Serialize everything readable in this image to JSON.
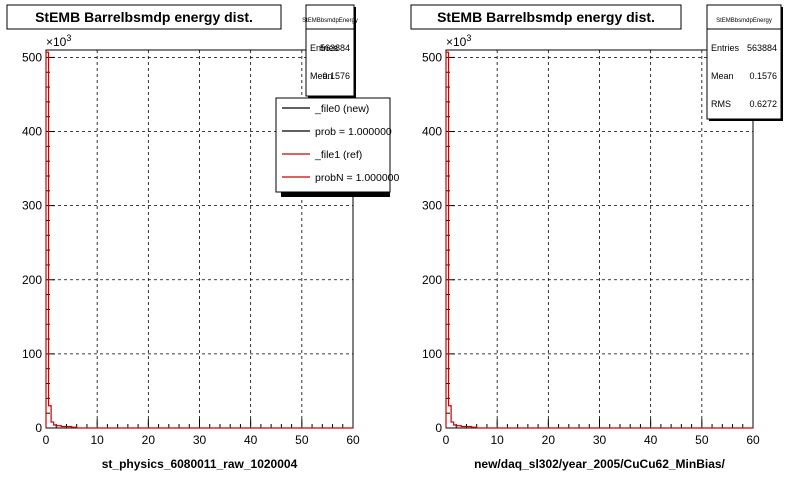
{
  "chart_data": [
    {
      "type": "histogram",
      "title": "StEMB Barrelbsmdp energy dist.",
      "xlabel": "st_physics_6080011_raw_1020004",
      "ylabel": "",
      "xlim": [
        0,
        60
      ],
      "ylim": [
        0,
        510
      ],
      "xticks": [
        0,
        10,
        20,
        30,
        40,
        50,
        60
      ],
      "yticks": [
        0,
        100,
        200,
        300,
        400,
        500
      ],
      "y_multiplier": "×10",
      "y_multiplier_exp": "3",
      "grid": true,
      "stats": {
        "title": "StEMBbsmdpEnergy",
        "rows": [
          {
            "label": "Entries",
            "value": "563884"
          },
          {
            "label": "Mean",
            "value": "0.1576"
          }
        ]
      },
      "legend": {
        "placement": "top-right",
        "entries": [
          {
            "label": "_file0 (new)",
            "color": "#000000"
          },
          {
            "label": "prob = 1.000000",
            "color": "#000000"
          },
          {
            "label": "_file1 (ref)",
            "color": "#cc0000"
          },
          {
            "label": "probN = 1.000000",
            "color": "#cc0000"
          }
        ]
      },
      "series": [
        {
          "color": "#cc0000",
          "x": [
            0,
            0.5,
            1,
            1.5,
            2,
            3,
            4,
            5
          ],
          "values": [
            507,
            30,
            8,
            4,
            3,
            2,
            2,
            1
          ]
        }
      ]
    },
    {
      "type": "histogram",
      "title": "StEMB Barrelbsmdp energy dist.",
      "xlabel": "new/daq_sl302/year_2005/CuCu62_MinBias/",
      "ylabel": "",
      "xlim": [
        0,
        60
      ],
      "ylim": [
        0,
        510
      ],
      "xticks": [
        0,
        10,
        20,
        30,
        40,
        50,
        60
      ],
      "yticks": [
        0,
        100,
        200,
        300,
        400,
        500
      ],
      "y_multiplier": "×10",
      "y_multiplier_exp": "3",
      "grid": true,
      "stats": {
        "title": "StEMBbsmdpEnergy",
        "rows": [
          {
            "label": "Entries",
            "value": "563884"
          },
          {
            "label": "Mean",
            "value": "0.1576"
          },
          {
            "label": "RMS",
            "value": "0.6272"
          }
        ]
      },
      "series": [
        {
          "color": "#cc0000",
          "x": [
            0,
            0.5,
            1,
            1.5,
            2,
            3,
            4,
            5
          ],
          "values": [
            507,
            30,
            8,
            4,
            3,
            2,
            2,
            1
          ]
        }
      ]
    }
  ]
}
